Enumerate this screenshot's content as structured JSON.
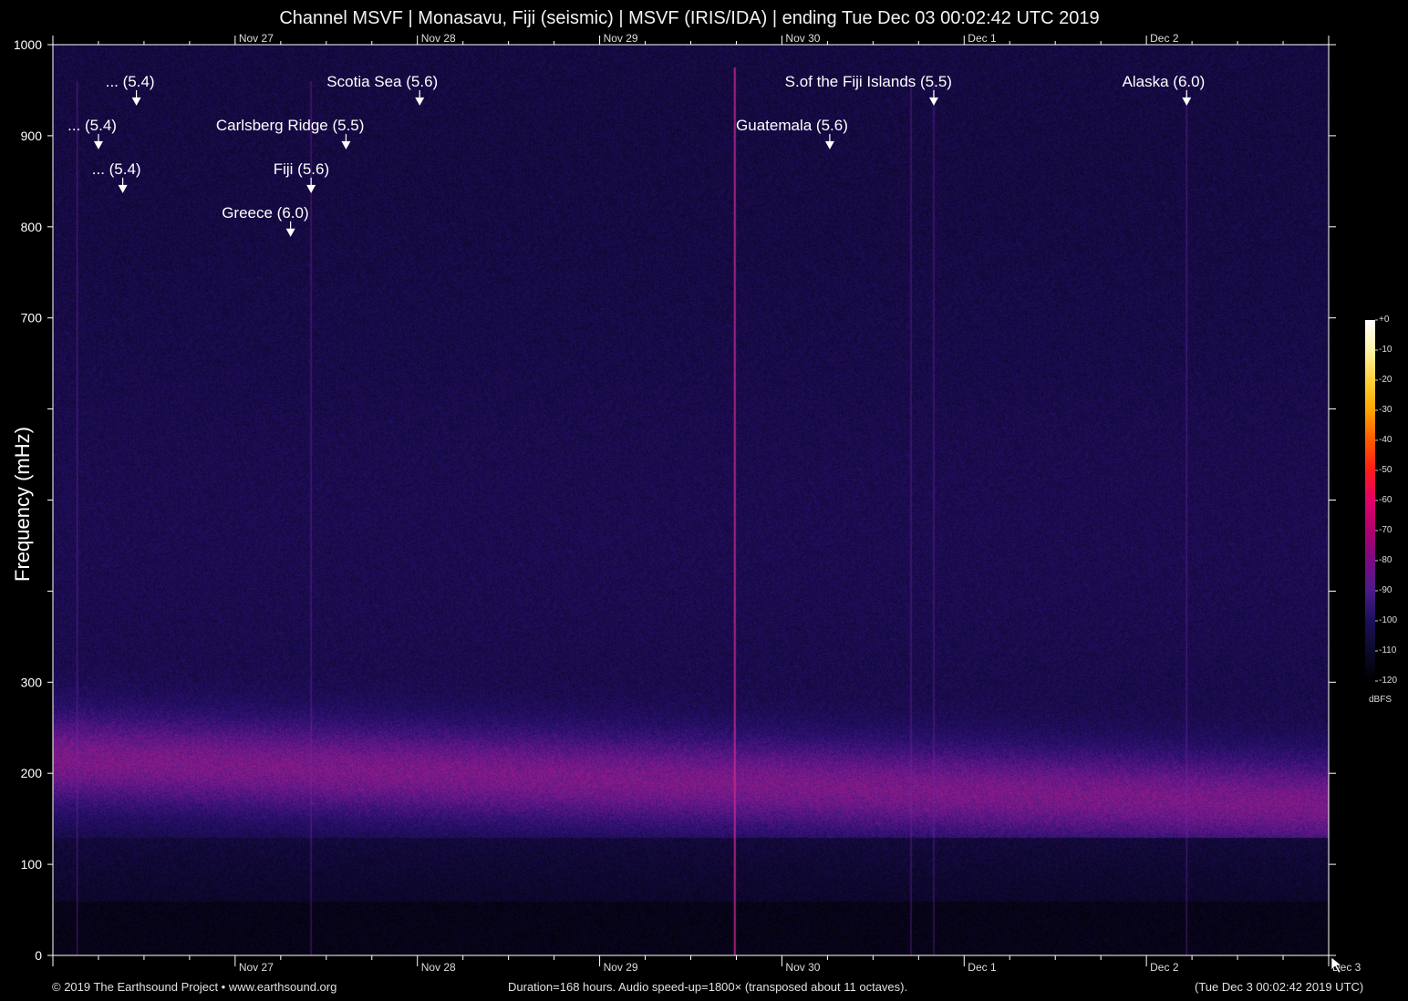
{
  "title": "Channel MSVF | Monasavu, Fiji (seismic) | MSVF (IRIS/IDA) | ending Tue Dec 03 00:02:42 UTC 2019",
  "footer": {
    "copyright": "© 2019 The Earthsound Project • www.earthsound.org",
    "info": "Duration=168 hours. Audio speed-up=1800× (transposed about 11 octaves).",
    "timestamp": "(Tue Dec  3 00:02:42 2019 UTC)"
  },
  "colors": {
    "background": "#000000",
    "spectrogram_base": "#12083a",
    "band_peak": "#b01b7c",
    "axis": "#ffffff",
    "annotation_text": "#ffffff"
  },
  "colorbar": {
    "unit": "dBFS",
    "ticks": [
      "+0",
      "-10",
      "-20",
      "-30",
      "-40",
      "-50",
      "-60",
      "-70",
      "-80",
      "-90",
      "-100",
      "-110",
      "-120"
    ],
    "colors": [
      "#ffffff",
      "#fff3a8",
      "#ffd23a",
      "#ffa500",
      "#ff5a00",
      "#ff1a1a",
      "#e0006a",
      "#b0006e",
      "#7a0a82",
      "#4a1a8a",
      "#1c0f5a",
      "#0b0a2a",
      "#000000"
    ]
  },
  "chart_data": {
    "type": "heatmap",
    "title": "Channel MSVF | Monasavu, Fiji (seismic) | MSVF (IRIS/IDA) | ending Tue Dec 03 00:02:42 UTC 2019",
    "xlabel": "",
    "ylabel": "Frequency (mHz)",
    "ylim": [
      0,
      1000
    ],
    "yticks": [
      0,
      100,
      200,
      300,
      700,
      800,
      900,
      1000
    ],
    "xlim_hours": [
      0,
      168
    ],
    "xticks": [
      {
        "label": "Nov 27",
        "hour": 24
      },
      {
        "label": "Nov 28",
        "hour": 48
      },
      {
        "label": "Nov 29",
        "hour": 72
      },
      {
        "label": "Nov 30",
        "hour": 96
      },
      {
        "label": "Dec  1",
        "hour": 120
      },
      {
        "label": "Dec  2",
        "hour": 144
      },
      {
        "label": "Dec  3",
        "hour": 168
      }
    ],
    "annotations": [
      {
        "label": "... (5.4)",
        "hour": 11.0,
        "text_freq": 960,
        "arrow_freq": 935
      },
      {
        "label": "... (5.4)",
        "hour": 6.0,
        "text_freq": 912,
        "arrow_freq": 887
      },
      {
        "label": "... (5.4)",
        "hour": 9.2,
        "text_freq": 864,
        "arrow_freq": 839
      },
      {
        "label": "Scotia Sea (5.6)",
        "hour": 48.3,
        "text_freq": 960,
        "arrow_freq": 935
      },
      {
        "label": "Carlsberg Ridge (5.5)",
        "hour": 38.6,
        "text_freq": 912,
        "arrow_freq": 887
      },
      {
        "label": "Fiji (5.6)",
        "hour": 34.0,
        "text_freq": 864,
        "arrow_freq": 839
      },
      {
        "label": "Greece (6.0)",
        "hour": 31.3,
        "text_freq": 816,
        "arrow_freq": 791
      },
      {
        "label": "S.of the Fiji Islands (5.5)",
        "hour": 116.0,
        "text_freq": 960,
        "arrow_freq": 935
      },
      {
        "label": "Guatemala (5.6)",
        "hour": 102.3,
        "text_freq": 912,
        "arrow_freq": 887
      },
      {
        "label": "Alaska (6.0)",
        "hour": 149.3,
        "text_freq": 960,
        "arrow_freq": 935
      }
    ],
    "features": {
      "noise_band_mhz": [
        130,
        300
      ],
      "noise_band_peak_mhz_start": 215,
      "noise_band_peak_mhz_end": 165,
      "vertical_lines_hours": [
        3.2,
        34.0,
        89.8,
        113.0,
        116.0,
        149.3
      ]
    }
  }
}
